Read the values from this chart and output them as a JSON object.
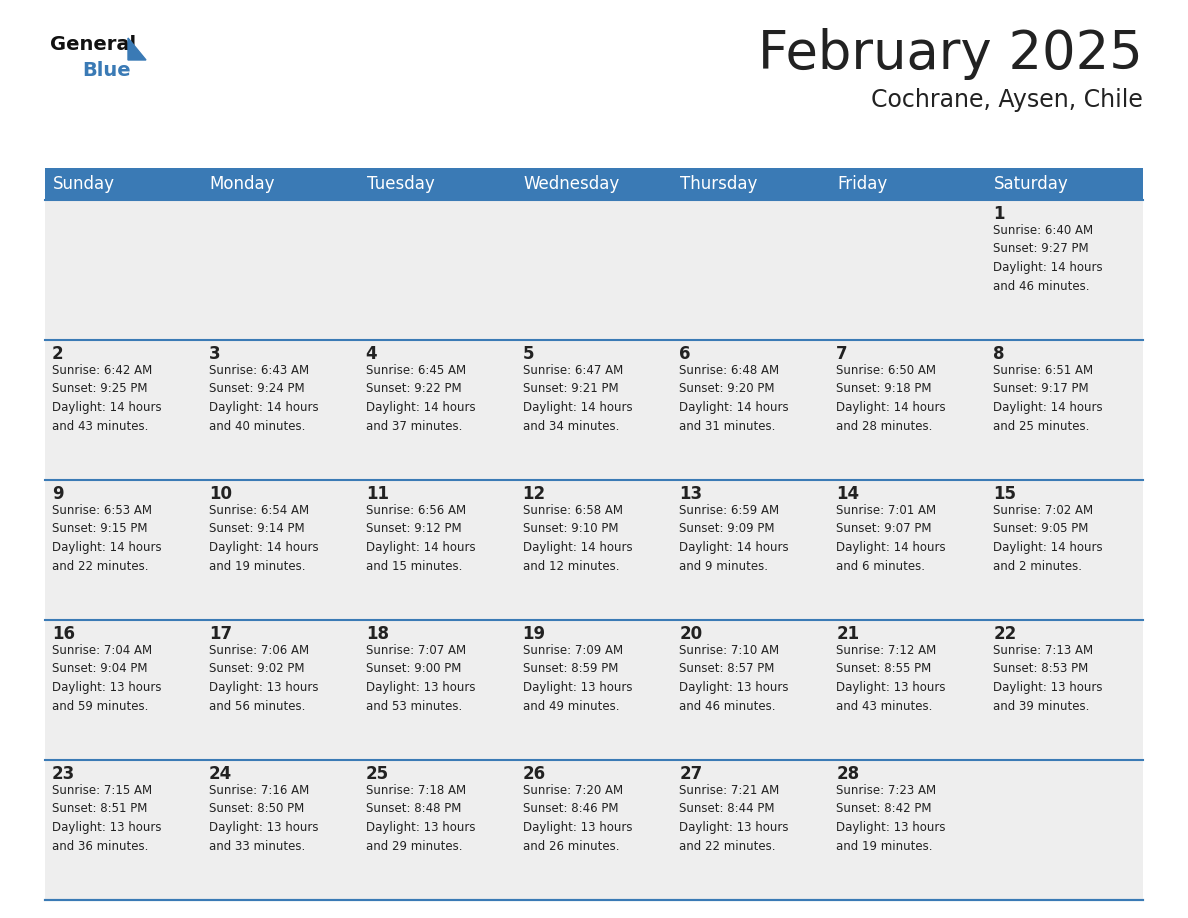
{
  "title": "February 2025",
  "subtitle": "Cochrane, Aysen, Chile",
  "header_color": "#3a7ab5",
  "header_text_color": "#ffffff",
  "day_names": [
    "Sunday",
    "Monday",
    "Tuesday",
    "Wednesday",
    "Thursday",
    "Friday",
    "Saturday"
  ],
  "title_fontsize": 38,
  "subtitle_fontsize": 17,
  "header_fontsize": 12,
  "cell_number_fontsize": 12,
  "cell_text_fontsize": 8.5,
  "background_color": "#ffffff",
  "cell_bg_color": "#eeeeee",
  "separator_color": "#3a7ab5",
  "text_color": "#222222",
  "logo_general_color": "#111111",
  "logo_blue_color": "#3a7ab5",
  "weeks": [
    [
      {
        "day": null,
        "info": null
      },
      {
        "day": null,
        "info": null
      },
      {
        "day": null,
        "info": null
      },
      {
        "day": null,
        "info": null
      },
      {
        "day": null,
        "info": null
      },
      {
        "day": null,
        "info": null
      },
      {
        "day": 1,
        "info": "Sunrise: 6:40 AM\nSunset: 9:27 PM\nDaylight: 14 hours\nand 46 minutes."
      }
    ],
    [
      {
        "day": 2,
        "info": "Sunrise: 6:42 AM\nSunset: 9:25 PM\nDaylight: 14 hours\nand 43 minutes."
      },
      {
        "day": 3,
        "info": "Sunrise: 6:43 AM\nSunset: 9:24 PM\nDaylight: 14 hours\nand 40 minutes."
      },
      {
        "day": 4,
        "info": "Sunrise: 6:45 AM\nSunset: 9:22 PM\nDaylight: 14 hours\nand 37 minutes."
      },
      {
        "day": 5,
        "info": "Sunrise: 6:47 AM\nSunset: 9:21 PM\nDaylight: 14 hours\nand 34 minutes."
      },
      {
        "day": 6,
        "info": "Sunrise: 6:48 AM\nSunset: 9:20 PM\nDaylight: 14 hours\nand 31 minutes."
      },
      {
        "day": 7,
        "info": "Sunrise: 6:50 AM\nSunset: 9:18 PM\nDaylight: 14 hours\nand 28 minutes."
      },
      {
        "day": 8,
        "info": "Sunrise: 6:51 AM\nSunset: 9:17 PM\nDaylight: 14 hours\nand 25 minutes."
      }
    ],
    [
      {
        "day": 9,
        "info": "Sunrise: 6:53 AM\nSunset: 9:15 PM\nDaylight: 14 hours\nand 22 minutes."
      },
      {
        "day": 10,
        "info": "Sunrise: 6:54 AM\nSunset: 9:14 PM\nDaylight: 14 hours\nand 19 minutes."
      },
      {
        "day": 11,
        "info": "Sunrise: 6:56 AM\nSunset: 9:12 PM\nDaylight: 14 hours\nand 15 minutes."
      },
      {
        "day": 12,
        "info": "Sunrise: 6:58 AM\nSunset: 9:10 PM\nDaylight: 14 hours\nand 12 minutes."
      },
      {
        "day": 13,
        "info": "Sunrise: 6:59 AM\nSunset: 9:09 PM\nDaylight: 14 hours\nand 9 minutes."
      },
      {
        "day": 14,
        "info": "Sunrise: 7:01 AM\nSunset: 9:07 PM\nDaylight: 14 hours\nand 6 minutes."
      },
      {
        "day": 15,
        "info": "Sunrise: 7:02 AM\nSunset: 9:05 PM\nDaylight: 14 hours\nand 2 minutes."
      }
    ],
    [
      {
        "day": 16,
        "info": "Sunrise: 7:04 AM\nSunset: 9:04 PM\nDaylight: 13 hours\nand 59 minutes."
      },
      {
        "day": 17,
        "info": "Sunrise: 7:06 AM\nSunset: 9:02 PM\nDaylight: 13 hours\nand 56 minutes."
      },
      {
        "day": 18,
        "info": "Sunrise: 7:07 AM\nSunset: 9:00 PM\nDaylight: 13 hours\nand 53 minutes."
      },
      {
        "day": 19,
        "info": "Sunrise: 7:09 AM\nSunset: 8:59 PM\nDaylight: 13 hours\nand 49 minutes."
      },
      {
        "day": 20,
        "info": "Sunrise: 7:10 AM\nSunset: 8:57 PM\nDaylight: 13 hours\nand 46 minutes."
      },
      {
        "day": 21,
        "info": "Sunrise: 7:12 AM\nSunset: 8:55 PM\nDaylight: 13 hours\nand 43 minutes."
      },
      {
        "day": 22,
        "info": "Sunrise: 7:13 AM\nSunset: 8:53 PM\nDaylight: 13 hours\nand 39 minutes."
      }
    ],
    [
      {
        "day": 23,
        "info": "Sunrise: 7:15 AM\nSunset: 8:51 PM\nDaylight: 13 hours\nand 36 minutes."
      },
      {
        "day": 24,
        "info": "Sunrise: 7:16 AM\nSunset: 8:50 PM\nDaylight: 13 hours\nand 33 minutes."
      },
      {
        "day": 25,
        "info": "Sunrise: 7:18 AM\nSunset: 8:48 PM\nDaylight: 13 hours\nand 29 minutes."
      },
      {
        "day": 26,
        "info": "Sunrise: 7:20 AM\nSunset: 8:46 PM\nDaylight: 13 hours\nand 26 minutes."
      },
      {
        "day": 27,
        "info": "Sunrise: 7:21 AM\nSunset: 8:44 PM\nDaylight: 13 hours\nand 22 minutes."
      },
      {
        "day": 28,
        "info": "Sunrise: 7:23 AM\nSunset: 8:42 PM\nDaylight: 13 hours\nand 19 minutes."
      },
      {
        "day": null,
        "info": null
      }
    ]
  ]
}
